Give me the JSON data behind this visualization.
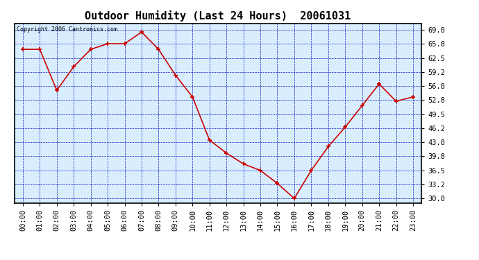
{
  "title": "Outdoor Humidity (Last 24 Hours)  20061031",
  "copyright_text": "Copyright 2006 Cantronics.com",
  "x_labels": [
    "00:00",
    "01:00",
    "02:00",
    "03:00",
    "04:00",
    "05:00",
    "06:00",
    "07:00",
    "08:00",
    "09:00",
    "10:00",
    "11:00",
    "12:00",
    "13:00",
    "14:00",
    "15:00",
    "16:00",
    "17:00",
    "18:00",
    "19:00",
    "20:00",
    "21:00",
    "22:00",
    "23:00"
  ],
  "y_values": [
    64.5,
    64.5,
    55.0,
    60.5,
    64.5,
    65.8,
    65.8,
    68.5,
    64.5,
    58.5,
    53.5,
    43.5,
    40.5,
    38.0,
    36.5,
    33.5,
    30.0,
    36.5,
    42.0,
    46.5,
    51.5,
    56.5,
    52.5,
    53.5
  ],
  "y_ticks": [
    30.0,
    33.2,
    36.5,
    39.8,
    43.0,
    46.2,
    49.5,
    52.8,
    56.0,
    59.2,
    62.5,
    65.8,
    69.0
  ],
  "ylim": [
    29.0,
    70.5
  ],
  "line_color": "#cc0000",
  "marker_color": "#cc0000",
  "grid_color": "#0000bb",
  "plot_bg_color": "#d8eeff",
  "fig_bg_color": "#ffffff",
  "title_fontsize": 11,
  "copyright_fontsize": 6,
  "tick_fontsize": 7.5
}
